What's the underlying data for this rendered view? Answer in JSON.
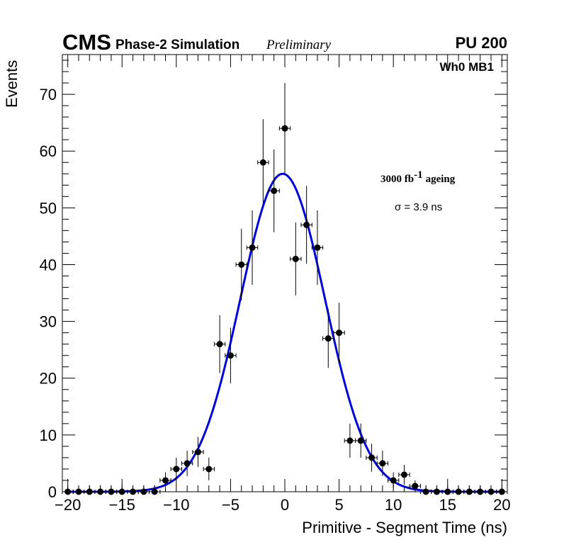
{
  "header": {
    "experiment": "CMS",
    "subtitle": "Phase-2 Simulation",
    "status": "Preliminary",
    "pileup": "PU 200"
  },
  "annotations": {
    "region": "Wh0 MB1",
    "ageing_value": "3000 fb",
    "ageing_exponent": "-1",
    "ageing_label": "ageing",
    "sigma": "σ = 3.9 ns"
  },
  "chart_data": {
    "type": "scatter",
    "title": "",
    "xlabel": "Primitive - Segment Time (ns)",
    "ylabel": "Events",
    "xlim": [
      -20.5,
      20.5
    ],
    "ylim": [
      0,
      77
    ],
    "x_ticks": [
      -20,
      -15,
      -10,
      -5,
      0,
      5,
      10,
      15,
      20
    ],
    "x_tick_labels": [
      "−20",
      "−15",
      "−10",
      "−5",
      "0",
      "5",
      "10",
      "15",
      "20"
    ],
    "y_ticks": [
      0,
      10,
      20,
      30,
      40,
      50,
      60,
      70
    ],
    "y_tick_labels": [
      "0",
      "10",
      "20",
      "30",
      "40",
      "50",
      "60",
      "70"
    ],
    "grid": false,
    "series": [
      {
        "name": "data",
        "style": "markers with error bars",
        "color": "#000000",
        "x": [
          -20,
          -19,
          -18,
          -17,
          -16,
          -15,
          -14,
          -13,
          -12,
          -11,
          -10,
          -9,
          -8,
          -7,
          -6,
          -5,
          -4,
          -3,
          -2,
          -1,
          0,
          1,
          2,
          3,
          4,
          5,
          6,
          7,
          8,
          9,
          10,
          11,
          12,
          13,
          14,
          15,
          16,
          17,
          18,
          19,
          20
        ],
        "y": [
          0,
          0,
          0,
          0,
          0,
          0,
          0,
          0,
          0,
          2,
          4,
          5,
          7,
          4,
          26,
          24,
          40,
          43,
          58,
          53,
          64,
          41,
          47,
          43,
          27,
          28,
          9,
          9,
          6,
          5,
          2,
          3,
          1,
          0,
          0,
          0,
          0,
          0,
          0,
          0,
          0
        ]
      },
      {
        "name": "Gaussian fit",
        "style": "line",
        "color": "#0000dd",
        "amplitude": 56,
        "mean": -0.2,
        "sigma": 3.9
      }
    ]
  }
}
